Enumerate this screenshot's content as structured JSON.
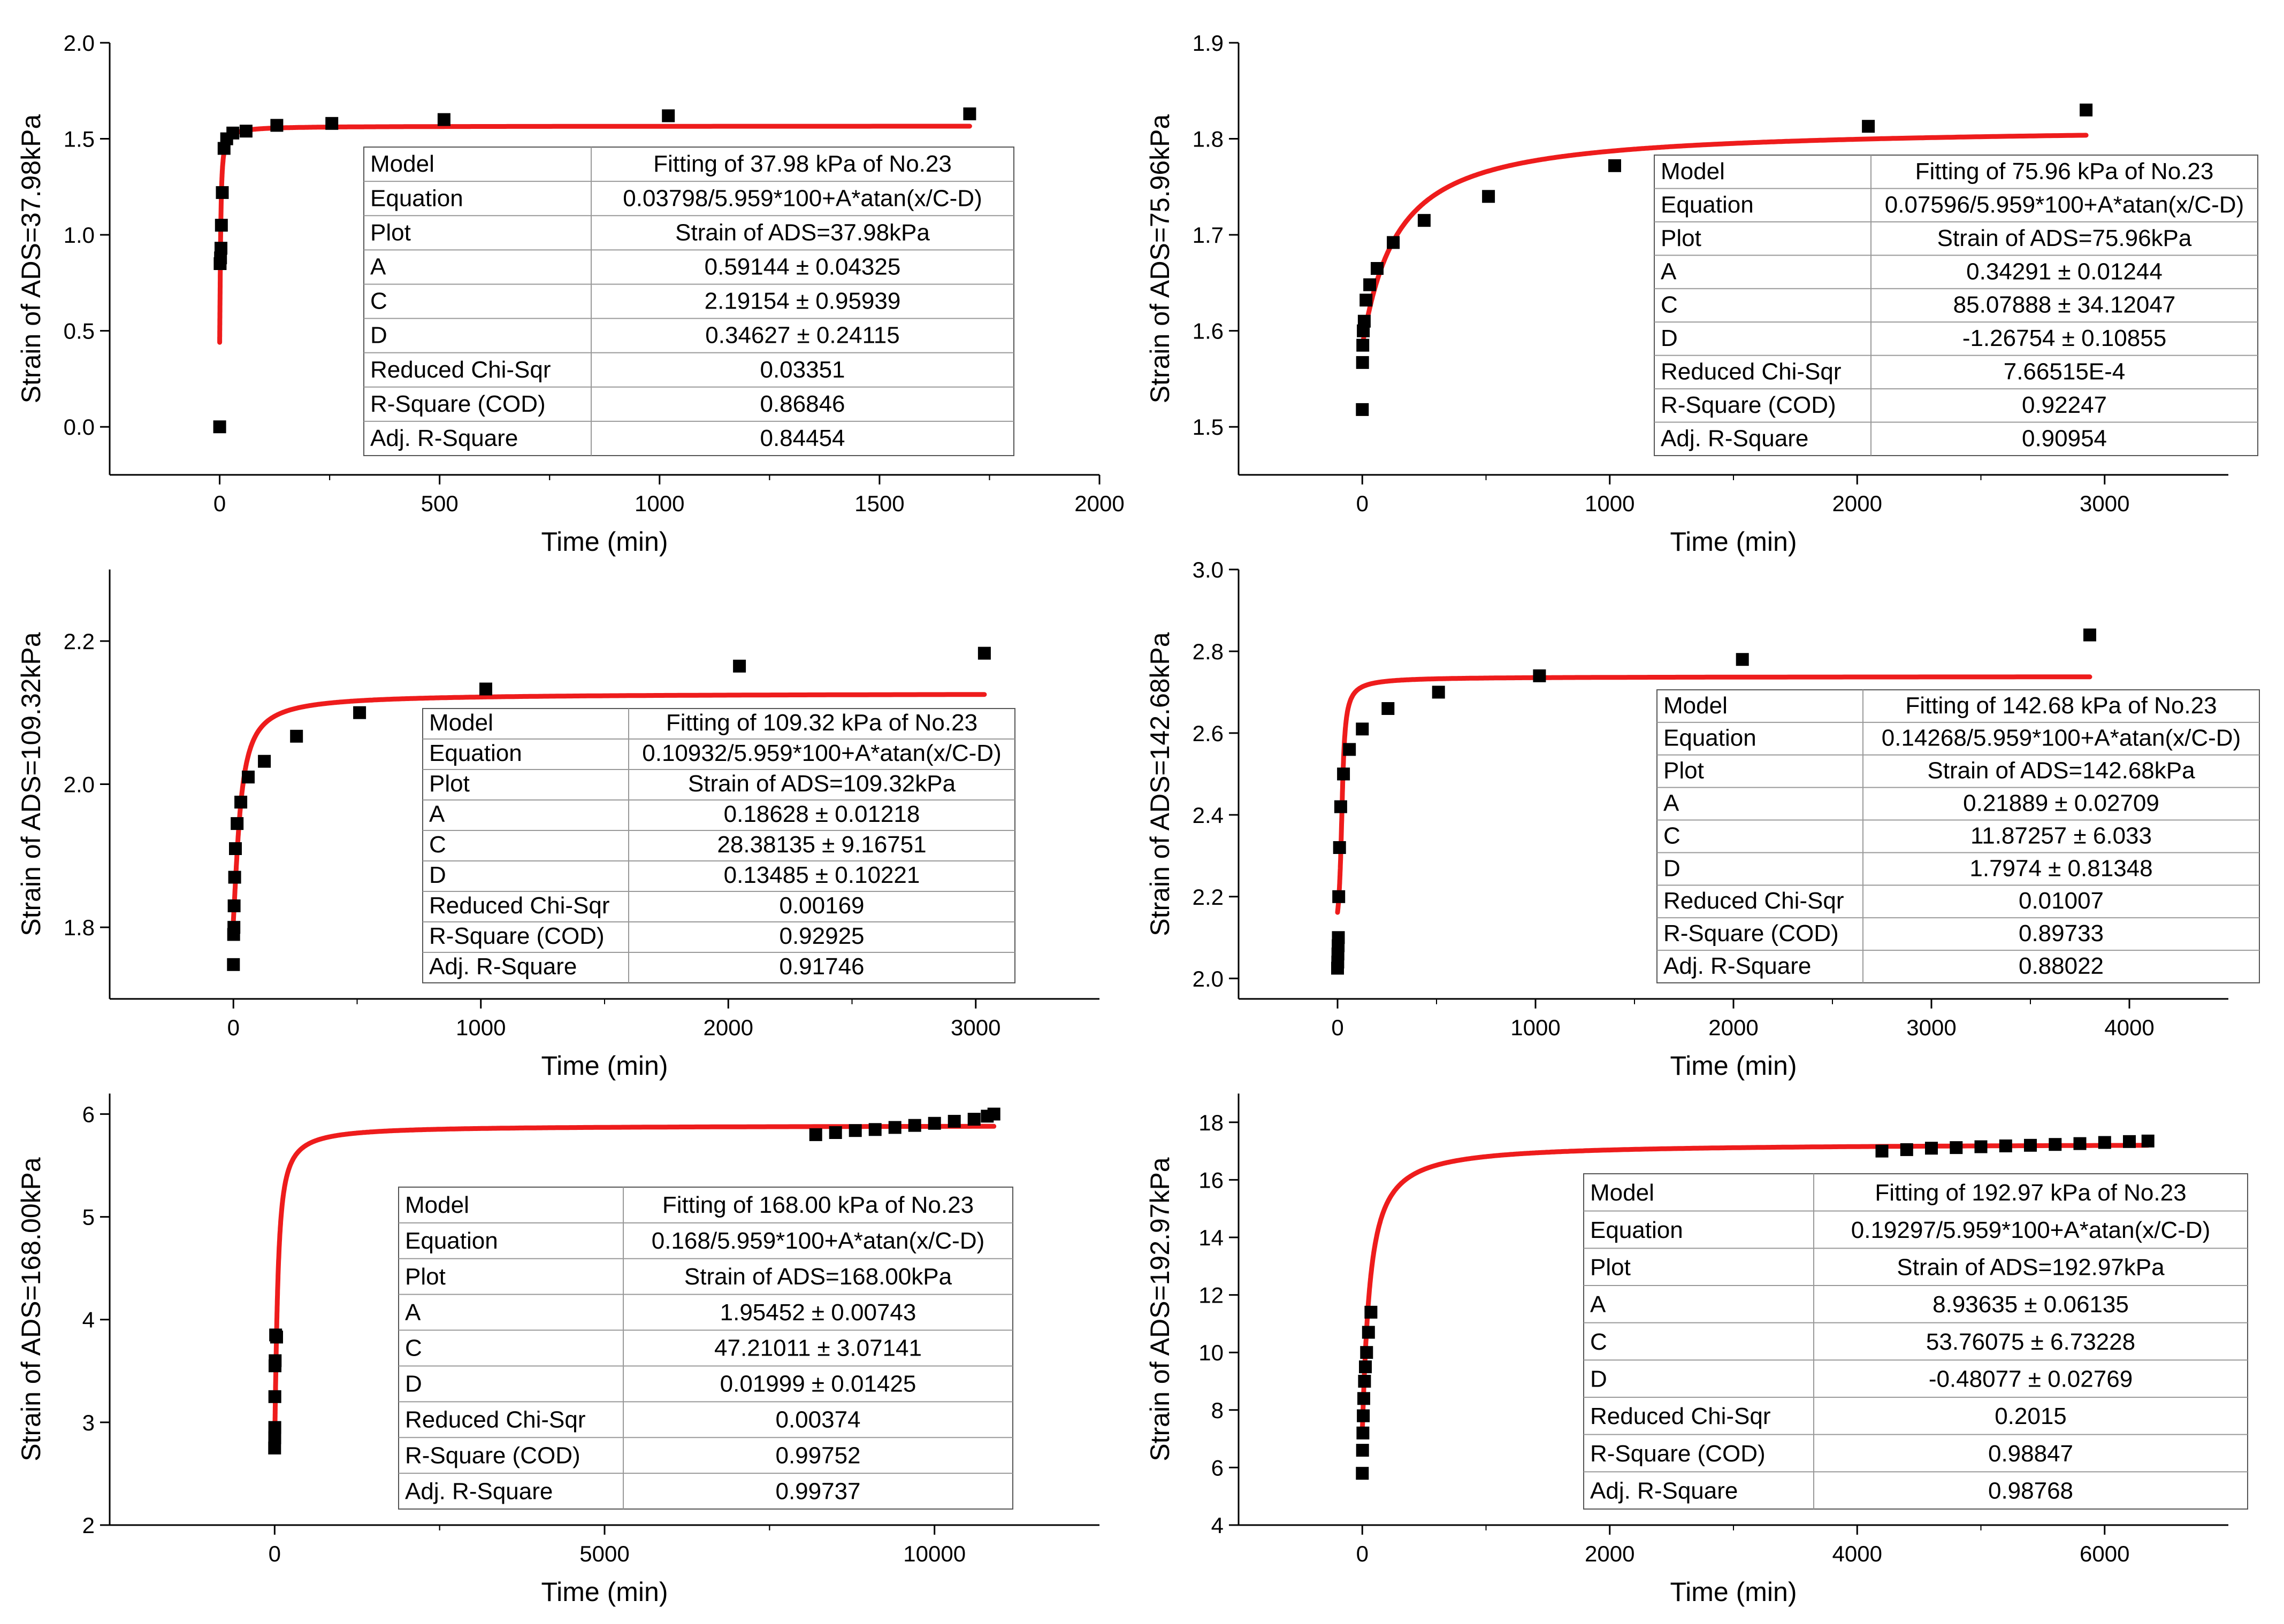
{
  "chart_data": [
    {
      "type": "scatter",
      "panel": "top-left",
      "xlabel": "Time (min)",
      "ylabel": "Strain of ADS=37.98kPa",
      "xlim": [
        -250,
        2000
      ],
      "ylim": [
        -0.25,
        2.0
      ],
      "xticks": [
        0,
        500,
        1000,
        1500,
        2000
      ],
      "xtick_labels": [
        "0",
        "500",
        "1000",
        "1500",
        "2000"
      ],
      "yticks": [
        0.0,
        0.5,
        1.0,
        1.5,
        2.0
      ],
      "ytick_labels": [
        "0.0",
        "0.5",
        "1.0",
        "1.5",
        "2.0"
      ],
      "points": {
        "x": [
          0,
          1,
          2,
          3,
          4,
          6,
          10,
          16,
          30,
          60,
          130,
          255,
          510,
          1020,
          1705
        ],
        "y": [
          0.0,
          0.85,
          0.88,
          0.93,
          1.05,
          1.22,
          1.45,
          1.5,
          1.53,
          1.54,
          1.57,
          1.58,
          1.6,
          1.62,
          1.63
        ]
      },
      "fit": {
        "base": 0.6373,
        "A": 0.59144,
        "C": 2.19154,
        "D": 0.34627,
        "x_start": 0,
        "x_end": 1705
      },
      "fit_table": [
        [
          "Model",
          "Fitting of 37.98 kPa of No.23"
        ],
        [
          "Equation",
          "0.03798/5.959*100+A*atan(x/C-D)"
        ],
        [
          "Plot",
          "Strain of ADS=37.98kPa"
        ],
        [
          "A",
          "0.59144 ± 0.04325"
        ],
        [
          "C",
          "2.19154 ± 0.95939"
        ],
        [
          "D",
          "0.34627 ± 0.24115"
        ],
        [
          "Reduced Chi-Sqr",
          "0.03351"
        ],
        [
          "R-Square (COD)",
          "0.86846"
        ],
        [
          "Adj. R-Square",
          "0.84454"
        ]
      ],
      "table_position": "right"
    },
    {
      "type": "scatter",
      "panel": "top-right",
      "xlabel": "Time (min)",
      "ylabel": "Strain of ADS=75.96kPa",
      "xlim": [
        -500,
        3500
      ],
      "ylim": [
        1.45,
        1.9
      ],
      "xticks": [
        0,
        1000,
        2000,
        3000
      ],
      "xtick_labels": [
        "0",
        "1000",
        "2000",
        "3000"
      ],
      "yticks": [
        1.5,
        1.6,
        1.7,
        1.8,
        1.9
      ],
      "ytick_labels": [
        "1.5",
        "1.6",
        "1.7",
        "1.8",
        "1.9"
      ],
      "points": {
        "x": [
          0,
          1,
          2,
          4,
          8,
          15,
          30,
          60,
          125,
          250,
          510,
          1020,
          2045,
          2925
        ],
        "y": [
          1.518,
          1.567,
          1.585,
          1.6,
          1.61,
          1.632,
          1.648,
          1.665,
          1.692,
          1.715,
          1.74,
          1.772,
          1.813,
          1.83
        ]
      },
      "fit": {
        "base": 1.2747,
        "A": 0.34291,
        "C": 85.07888,
        "D": -1.26754,
        "x_start": 0,
        "x_end": 2925
      },
      "fit_table": [
        [
          "Model",
          "Fitting of 75.96 kPa of No.23"
        ],
        [
          "Equation",
          "0.07596/5.959*100+A*atan(x/C-D)"
        ],
        [
          "Plot",
          "Strain of ADS=75.96kPa"
        ],
        [
          "A",
          "0.34291 ± 0.01244"
        ],
        [
          "C",
          "85.07888 ± 34.12047"
        ],
        [
          "D",
          "-1.26754 ± 0.10855"
        ],
        [
          "Reduced Chi-Sqr",
          "7.66515E-4"
        ],
        [
          "R-Square (COD)",
          "0.92247"
        ],
        [
          "Adj. R-Square",
          "0.90954"
        ]
      ],
      "table_position": "right"
    },
    {
      "type": "scatter",
      "panel": "middle-left",
      "xlabel": "Time (min)",
      "ylabel": "Strain of ADS=109.32kPa",
      "xlim": [
        -500,
        3500
      ],
      "ylim": [
        1.7,
        2.3
      ],
      "xticks": [
        0,
        1000,
        2000,
        3000
      ],
      "xtick_labels": [
        "0",
        "1000",
        "2000",
        "3000"
      ],
      "yticks": [
        1.8,
        2.0,
        2.2
      ],
      "ytick_labels": [
        "1.8",
        "2.0",
        "2.2"
      ],
      "points": {
        "x": [
          0,
          1,
          2,
          3,
          5,
          8,
          15,
          30,
          60,
          125,
          255,
          510,
          1020,
          2045,
          3035
        ],
        "y": [
          1.748,
          1.79,
          1.8,
          1.83,
          1.87,
          1.91,
          1.945,
          1.975,
          2.01,
          2.032,
          2.067,
          2.1,
          2.133,
          2.165,
          2.183
        ]
      },
      "fit": {
        "base": 1.8345,
        "A": 0.18628,
        "C": 28.38135,
        "D": 0.13485,
        "x_start": 0,
        "x_end": 3035
      },
      "fit_table": [
        [
          "Model",
          "Fitting of 109.32 kPa of No.23"
        ],
        [
          "Equation",
          "0.10932/5.959*100+A*atan(x/C-D)"
        ],
        [
          "Plot",
          "Strain of ADS=109.32kPa"
        ],
        [
          "A",
          "0.18628 ± 0.01218"
        ],
        [
          "C",
          "28.38135 ± 9.16751"
        ],
        [
          "D",
          "0.13485 ± 0.10221"
        ],
        [
          "Reduced Chi-Sqr",
          "0.00169"
        ],
        [
          "R-Square (COD)",
          "0.92925"
        ],
        [
          "Adj. R-Square",
          "0.91746"
        ]
      ],
      "table_position": "right"
    },
    {
      "type": "scatter",
      "panel": "middle-right",
      "xlabel": "Time (min)",
      "ylabel": "Strain of ADS=142.68kPa",
      "xlim": [
        -500,
        4500
      ],
      "ylim": [
        1.95,
        3.0
      ],
      "xticks": [
        0,
        1000,
        2000,
        3000,
        4000
      ],
      "xtick_labels": [
        "0",
        "1000",
        "2000",
        "3000",
        "4000"
      ],
      "yticks": [
        2.0,
        2.2,
        2.4,
        2.6,
        2.8,
        3.0
      ],
      "ytick_labels": [
        "2.0",
        "2.2",
        "2.4",
        "2.6",
        "2.8",
        "3.0"
      ],
      "points": {
        "x": [
          0,
          1,
          2,
          3,
          4,
          6,
          10,
          16,
          30,
          60,
          125,
          255,
          510,
          1020,
          2045,
          3800
        ],
        "y": [
          2.025,
          2.04,
          2.06,
          2.08,
          2.1,
          2.2,
          2.32,
          2.42,
          2.5,
          2.56,
          2.61,
          2.66,
          2.7,
          2.74,
          2.78,
          2.84
        ]
      },
      "fit": {
        "base": 2.3943,
        "A": 0.21889,
        "C": 11.87257,
        "D": 1.7974,
        "x_start": 0,
        "x_end": 3800
      },
      "fit_table": [
        [
          "Model",
          "Fitting of 142.68 kPa of No.23"
        ],
        [
          "Equation",
          "0.14268/5.959*100+A*atan(x/C-D)"
        ],
        [
          "Plot",
          "Strain of ADS=142.68kPa"
        ],
        [
          "A",
          "0.21889 ± 0.02709"
        ],
        [
          "C",
          "11.87257 ± 6.033"
        ],
        [
          "D",
          "1.7974 ± 0.81348"
        ],
        [
          "Reduced Chi-Sqr",
          "0.01007"
        ],
        [
          "R-Square (COD)",
          "0.89733"
        ],
        [
          "Adj. R-Square",
          "0.88022"
        ]
      ],
      "table_position": "right"
    },
    {
      "type": "scatter",
      "panel": "bottom-left",
      "xlabel": "Time (min)",
      "ylabel": "Strain of ADS=168.00kPa",
      "xlim": [
        -2500,
        12500
      ],
      "ylim": [
        2,
        6.2
      ],
      "xticks": [
        0,
        5000,
        10000
      ],
      "xtick_labels": [
        "0",
        "5000",
        "10000"
      ],
      "yticks": [
        2,
        3,
        4,
        5,
        6
      ],
      "ytick_labels": [
        "2",
        "3",
        "4",
        "5",
        "6"
      ],
      "points": {
        "x": [
          0,
          1,
          2,
          3,
          5,
          8,
          15,
          30,
          8200,
          8500,
          8800,
          9100,
          9400,
          9700,
          10000,
          10300,
          10600,
          10800,
          10900
        ],
        "y": [
          2.75,
          2.85,
          2.95,
          3.25,
          3.55,
          3.6,
          3.85,
          3.83,
          5.8,
          5.82,
          5.84,
          5.85,
          5.87,
          5.89,
          5.91,
          5.93,
          5.95,
          5.98,
          6.0
        ]
      },
      "fit": {
        "base": 2.8193,
        "A": 1.95452,
        "C": 47.21011,
        "D": 0.01999,
        "x_start": 0,
        "x_end": 10900
      },
      "fit_table": [
        [
          "Model",
          "Fitting of 168.00 kPa of No.23"
        ],
        [
          "Equation",
          "0.168/5.959*100+A*atan(x/C-D)"
        ],
        [
          "Plot",
          "Strain of ADS=168.00kPa"
        ],
        [
          "A",
          "1.95452 ± 0.00743"
        ],
        [
          "C",
          "47.21011 ± 3.07141"
        ],
        [
          "D",
          "0.01999 ± 0.01425"
        ],
        [
          "Reduced Chi-Sqr",
          "0.00374"
        ],
        [
          "R-Square (COD)",
          "0.99752"
        ],
        [
          "Adj. R-Square",
          "0.99737"
        ]
      ],
      "table_position": "right"
    },
    {
      "type": "scatter",
      "panel": "bottom-right",
      "xlabel": "Time (min)",
      "ylabel": "Strain of ADS=192.97kPa",
      "xlim": [
        -1000,
        7000
      ],
      "ylim": [
        4,
        19
      ],
      "xticks": [
        0,
        2000,
        4000,
        6000
      ],
      "xtick_labels": [
        "0",
        "2000",
        "4000",
        "6000"
      ],
      "yticks": [
        4,
        6,
        8,
        10,
        12,
        14,
        16,
        18
      ],
      "ytick_labels": [
        "4",
        "6",
        "8",
        "10",
        "12",
        "14",
        "16",
        "18"
      ],
      "points": {
        "x": [
          0,
          2,
          5,
          8,
          12,
          18,
          25,
          35,
          50,
          70,
          4200,
          4400,
          4600,
          4800,
          5000,
          5200,
          5400,
          5600,
          5800,
          6000,
          6200,
          6350
        ],
        "y": [
          5.8,
          6.6,
          7.2,
          7.8,
          8.4,
          9.0,
          9.5,
          10.0,
          10.7,
          11.4,
          17.0,
          17.05,
          17.1,
          17.12,
          17.15,
          17.18,
          17.2,
          17.23,
          17.26,
          17.3,
          17.33,
          17.35
        ]
      },
      "fit": {
        "base": 3.2383,
        "A": 8.93635,
        "C": 53.76075,
        "D": -0.48077,
        "x_start": 0,
        "x_end": 6350
      },
      "fit_table": [
        [
          "Model",
          "Fitting of 192.97 kPa of No.23"
        ],
        [
          "Equation",
          "0.19297/5.959*100+A*atan(x/C-D)"
        ],
        [
          "Plot",
          "Strain of ADS=192.97kPa"
        ],
        [
          "A",
          "8.93635 ± 0.06135"
        ],
        [
          "C",
          "53.76075 ± 6.73228"
        ],
        [
          "D",
          "-0.48077 ± 0.02769"
        ],
        [
          "Reduced Chi-Sqr",
          "0.2015"
        ],
        [
          "R-Square (COD)",
          "0.98847"
        ],
        [
          "Adj. R-Square",
          "0.98768"
        ]
      ],
      "table_position": "right"
    }
  ]
}
